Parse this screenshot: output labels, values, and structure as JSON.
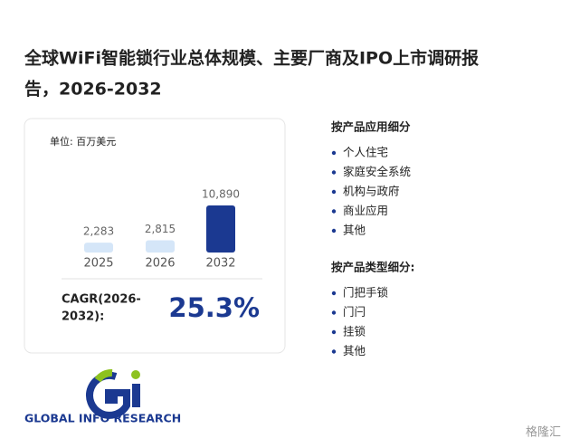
{
  "title": "全球WiFi智能锁行业总体规模、主要厂商及IPO上市调研报告，2026-2032",
  "chart_data": {
    "type": "bar",
    "unit": "单位: 百万美元",
    "categories": [
      "2025",
      "2026",
      "2032"
    ],
    "values": [
      2283,
      2815,
      10890
    ],
    "value_labels": [
      "2,283",
      "2,815",
      "10,890"
    ],
    "colors": [
      "#d5e6f8",
      "#d5e6f8",
      "#1b3991"
    ]
  },
  "cagr": {
    "label": "CAGR(2026-2032):",
    "value": "25.3%"
  },
  "segments": [
    {
      "heading": "按产品应用细分",
      "items": [
        "个人住宅",
        "家庭安全系统",
        "机构与政府",
        "商业应用",
        "其他"
      ]
    },
    {
      "heading": "按产品类型细分:",
      "items": [
        "门把手锁",
        "门闩",
        "挂锁",
        "其他"
      ]
    }
  ],
  "logo": "GLOBAL INFO RESEARCH",
  "watermark": "格隆汇"
}
